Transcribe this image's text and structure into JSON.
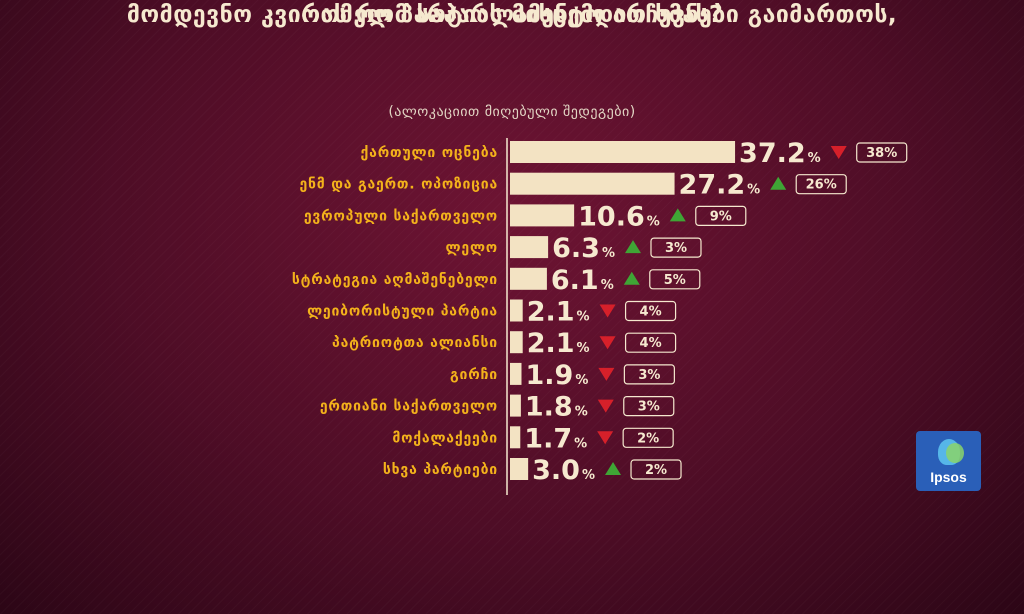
{
  "title_line1": "მომდევნო კვირას რომ საპარლამენტო არჩევნები გაიმართოს,",
  "title_line2": "რომელ პარტიას მისცემდით ხმას?",
  "subtitle": "(ალოკაციით მიღებული შედეგები)",
  "colors": {
    "bar": "#f3e3c3",
    "label": "#f3b21b",
    "text": "#f6e9cf",
    "up": "#3fa535",
    "down": "#d6202a",
    "axis": "#f6e9cf"
  },
  "chart_data": {
    "type": "bar",
    "orientation": "horizontal",
    "categories": [
      "ქართული ოცნება",
      "ენმ და გაერთ. ოპოზიცია",
      "ევროპული საქართველო",
      "ლელო",
      "სტრატეგია აღმაშენებელი",
      "ლეიბორისტული პარტია",
      "პატრიოტთა ალიანსი",
      "გირჩი",
      "ერთიანი საქართველო",
      "მოქალაქეები",
      "სხვა პარტიები"
    ],
    "values": [
      37.2,
      27.2,
      10.6,
      6.3,
      6.1,
      2.1,
      2.1,
      1.9,
      1.8,
      1.7,
      3.0
    ],
    "value_labels": [
      "37.2",
      "27.2",
      "10.6",
      "6.3",
      "6.1",
      "2.1",
      "2.1",
      "1.9",
      "1.8",
      "1.7",
      "3.0"
    ],
    "unit": "%",
    "trend": [
      "down",
      "up",
      "up",
      "up",
      "up",
      "down",
      "down",
      "down",
      "down",
      "down",
      "up"
    ],
    "previous": [
      "38%",
      "26%",
      "9%",
      "3%",
      "5%",
      "4%",
      "4%",
      "3%",
      "3%",
      "2%",
      "2%"
    ],
    "xlim": [
      0,
      40
    ]
  },
  "logo": {
    "text": "Ipsos"
  }
}
